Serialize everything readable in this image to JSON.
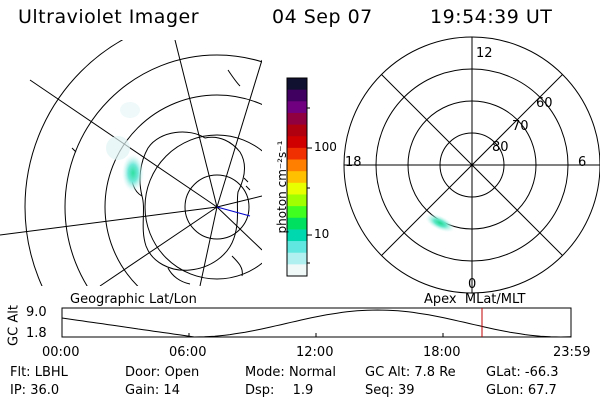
{
  "header": {
    "instrument": "Ultraviolet Imager",
    "date": "04 Sep 07",
    "time": "19:54:39 UT"
  },
  "colorbar": {
    "unit_label": "photon cm⁻²s⁻¹",
    "ticks": [
      "100",
      "10"
    ],
    "colors": [
      "#101030",
      "#400060",
      "#700080",
      "#900040",
      "#b00010",
      "#d00000",
      "#f03000",
      "#ff8000",
      "#ffc000",
      "#e8ff00",
      "#a0ff00",
      "#40ff20",
      "#00e060",
      "#00d8b0",
      "#60e8e0",
      "#b0f0f0",
      "#f0f8f8"
    ]
  },
  "left_map": {
    "caption": "Geographic Lat/Lon"
  },
  "right_map": {
    "caption": "Apex  MLat/MLT",
    "mlt_labels": {
      "top": "12",
      "left": "18",
      "right": "6",
      "bottom": "0"
    },
    "lat_labels": [
      "60",
      "70",
      "80"
    ]
  },
  "altitude_plot": {
    "ylabel": "GC Alt",
    "yticks": [
      "9.0",
      "1.8"
    ],
    "xticks": [
      "00:00",
      "06:00",
      "12:00",
      "18:00",
      "23:59"
    ],
    "marker_color": "#c00000"
  },
  "status": {
    "filter_label": "Flt:",
    "filter_value": "LBHL",
    "ip_label": "IP:",
    "ip_value": "36.0",
    "door_label": "Door:",
    "door_value": "Open",
    "gain_label": "Gain:",
    "gain_value": "14",
    "mode_label": "Mode:",
    "mode_value": "Normal",
    "dsp_label": "Dsp:",
    "dsp_value": "1.9",
    "gcalt_label": "GC Alt:",
    "gcalt_value": "7.8 Re",
    "seq_label": "Seq:",
    "seq_value": "39",
    "glat_label": "GLat:",
    "glat_value": "-66.3",
    "glon_label": "GLon:",
    "glon_value": "67.7"
  }
}
